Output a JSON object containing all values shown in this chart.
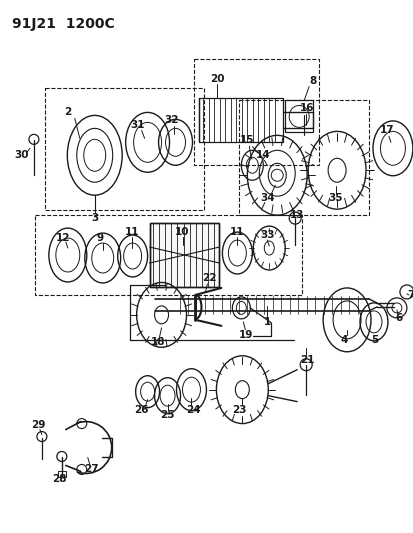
{
  "title": "91J21  1200C",
  "bg_color": "#ffffff",
  "lc": "#1a1a1a",
  "fig_w": 4.14,
  "fig_h": 5.33,
  "dpi": 100,
  "label_fs": 7.5,
  "title_fs": 10
}
